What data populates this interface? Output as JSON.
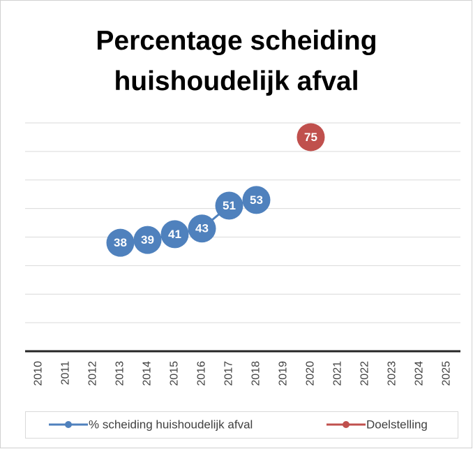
{
  "chart_data": {
    "type": "line",
    "title": "Percentage scheiding huishoudelijk afval",
    "categories": [
      "2010",
      "2011",
      "2012",
      "2013",
      "2014",
      "2015",
      "2016",
      "2017",
      "2018",
      "2019",
      "2020",
      "2021",
      "2022",
      "2023",
      "2024",
      "2025"
    ],
    "series": [
      {
        "name": "% scheiding huishoudelijk afval",
        "color": "#4f81bd",
        "values": [
          null,
          null,
          null,
          38,
          39,
          41,
          43,
          51,
          53,
          null,
          null,
          null,
          null,
          null,
          null,
          null
        ]
      },
      {
        "name": "Doelstelling",
        "color": "#c0504d",
        "values": [
          null,
          null,
          null,
          null,
          null,
          null,
          null,
          null,
          null,
          null,
          75,
          null,
          null,
          null,
          null,
          null
        ]
      }
    ],
    "ylim": [
      0,
      80
    ],
    "yticks": [
      0,
      10,
      20,
      30,
      40,
      50,
      60,
      70,
      80
    ],
    "grid": true,
    "legend": "bottom"
  }
}
